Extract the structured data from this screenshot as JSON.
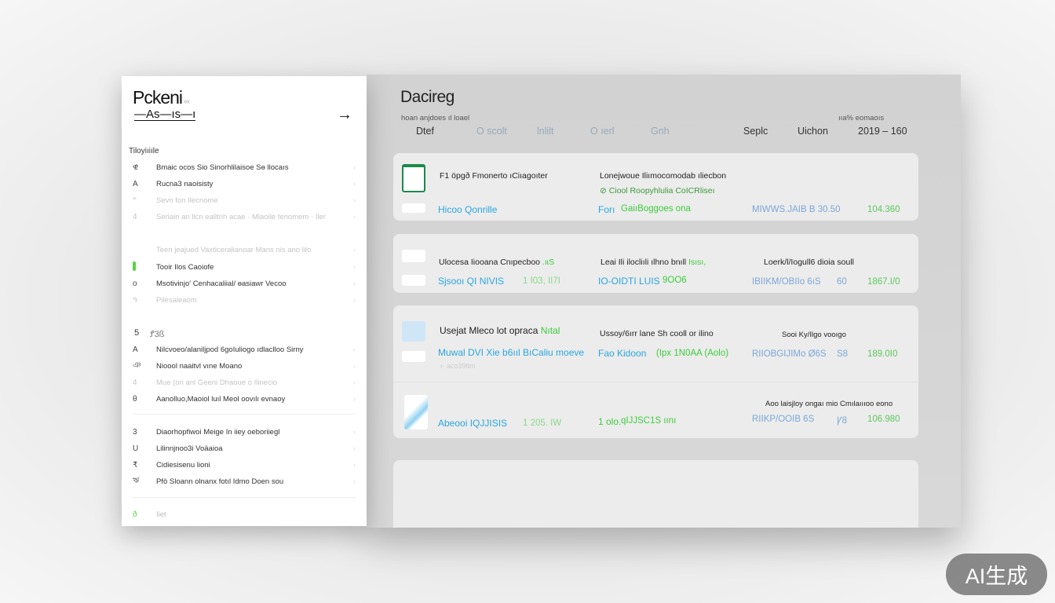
{
  "sidebar": {
    "brand": "Pckeni",
    "brand_badge": "‹‹‹",
    "subtitle": "—As—ıs—ı",
    "section1": "Tiloyiıiıle",
    "items": [
      {
        "icon": "ዊ",
        "label": "Bmaic ocos Sio Sinorhlilaisoe Sɵ llocaıs",
        "faint": false
      },
      {
        "icon": "A",
        "label": "Rucna3 naoisisty",
        "faint": false
      },
      {
        "icon": "^",
        "label": "Sevn fon Ilecnome",
        "faint": true
      },
      {
        "icon": "4",
        "label": "Seriain an llcn ealltnh acae · Mlaoile tenomem · Iler",
        "faint": true
      },
      {
        "icon": "",
        "label": "Teen jeajued Vaxticeralianoar Mans nis ano lilo",
        "faint": true
      },
      {
        "icon": "green",
        "label": "Tooir Ilos Caoiofe",
        "faint": false
      },
      {
        "icon": "o",
        "label": "Msotivinjo' Cenhacaliial/ ɵasiawr Vecoo",
        "faint": false
      },
      {
        "icon": "ዓ",
        "label": "Pilesaleaom",
        "faint": true
      }
    ],
    "section2_num": "5",
    "section2": "Ꝭ3ß",
    "items2": [
      {
        "icon": "A",
        "label": "Nilcvoeo/alaniljpod 6goIuliogo ıdlaclloo Sirny",
        "faint": false
      },
      {
        "icon": "ঞ",
        "label": "Nioool naaitvl vıne Moano",
        "faint": false
      },
      {
        "icon": "4",
        "label": "Mue (on anl Geeni Dhaoue o Ilinecio",
        "faint": true
      },
      {
        "icon": "θ",
        "label": "Aanolluo,Maoiol luıl Meol oovılı evnaoy",
        "faint": false
      }
    ],
    "items3": [
      {
        "icon": "3",
        "label": "Diaorhopfiwoi Meige In iiey oeboriiegl",
        "faint": false
      },
      {
        "icon": "U",
        "label": "Lilinnjnoo3i Voäaioa",
        "faint": false
      },
      {
        "icon": "₹",
        "label": "Cidiesisenu lioni",
        "faint": false
      },
      {
        "icon": "ঋ",
        "label": "Pfö Sloann olnanx fotıl Idmo Doen sou",
        "faint": false
      }
    ],
    "footer_icon": "ð",
    "footer": "Iiet"
  },
  "main": {
    "title": "Dacireg",
    "hint_left": "hoan anjdoes ıl loael",
    "hint_right": "ııa% eomaoıs",
    "filters": [
      {
        "label": "Dtef",
        "light": false
      },
      {
        "label": "O scolt",
        "light": true
      },
      {
        "label": "lnlilt",
        "light": true
      },
      {
        "label": "O ıerl",
        "light": true
      },
      {
        "label": "Gnh",
        "light": true
      },
      {
        "label": "Seplc",
        "light": false
      },
      {
        "label": "Uichon",
        "light": false
      },
      {
        "label": "2019 – 160",
        "light": false
      }
    ],
    "cards": [
      {
        "title": "F1 öpgð Fmonerto ıCiıagoıter",
        "col2_title": "Lonejwoue Iliımocomodab ıliecbon",
        "col2_sub": "⊘ Ciool Roopyhlulia CoICRliseı",
        "name": "Hicoo Qonrille",
        "mid": "Forı",
        "mid_green": "GaiıBoggoes ona",
        "price": "MIWWS.JAIB B 30.50",
        "total": "104.360"
      },
      {
        "title": "Ulocesa Iiooana Cnıpecboo",
        "title_green": ".ıɩS",
        "col2_title": "Leai Ili ilocliıli ılhno bnıll",
        "col2_green": "Isısı,",
        "col3_title": "Loerk/l/Iogull6 dioia soull",
        "name": "Sjsooı QI NIVIS",
        "name_green": "1 I03, II7I",
        "mid": "IO-OIDTI LUIS",
        "mid_green": "9OO6",
        "price": "IBIIKM/OBIIo 6ıS",
        "qty": "60",
        "total": "1867.I/0"
      },
      {
        "title": "Usejat Mleco lot opraca",
        "title_green": "Nıtal",
        "col2_title": "Ussoy/6ırr lane Sh cooll or ilino",
        "col3_title": "Sooi Ky/Ilgo vooıgo",
        "name": "Muwal DVI Xie b6ııl BıCaliu moeve",
        "name_sub": "ı· aco39tlm",
        "mid": "Fao Kidoon",
        "mid_green": "(Ipx 1N0AA (Aolo)",
        "price": "RIIOBGIJIMo Ø6S",
        "qty": "S8",
        "total": "189.0I0"
      },
      {
        "col3_title": "Aoo laisjloy ongaı mio Cmılaıııoo eono",
        "name": "Abeooi IQJJISIS",
        "name_green": "1 205. IW",
        "mid": "1 olo.",
        "mid_green": "qIJJSC1S ıını",
        "price": "RIIKP/OOIB 6S",
        "qty": "Ꝩ8",
        "total": "106.980"
      }
    ]
  },
  "watermark": "AI生成",
  "colors": {
    "accent_blue": "#2aa6e0",
    "accent_green": "#3ccd3c",
    "price_blue": "#7ba7d8"
  }
}
